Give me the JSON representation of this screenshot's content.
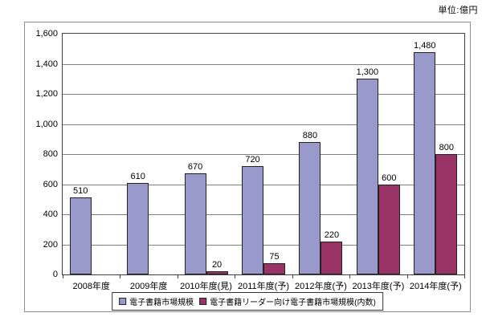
{
  "chart_data": {
    "type": "bar",
    "title": "",
    "unit_annotation": "単位:億円",
    "categories": [
      "2008年度",
      "2009年度",
      "2010年度(見)",
      "2011年度(予)",
      "2012年度(予)",
      "2013年度(予)",
      "2014年度(予)"
    ],
    "series": [
      {
        "name": "電子書籍市場規模",
        "color": "#9999CC",
        "values": [
          510,
          610,
          670,
          720,
          880,
          1300,
          1480
        ]
      },
      {
        "name": "電子書籍リーダー向け電子書籍市場規模(内数)",
        "color": "#993366",
        "values": [
          null,
          null,
          20,
          75,
          220,
          600,
          800
        ]
      }
    ],
    "xlabel": "",
    "ylabel": "",
    "ylim": [
      0,
      1600
    ],
    "ytick_step": 200,
    "grid": true,
    "legend_position": "bottom",
    "data_labels": true
  },
  "colors": {
    "series1": "#9999CC",
    "series2": "#993366",
    "gridline": "#808080",
    "plot_border": "#404040",
    "frame_border": "#8c8c8c",
    "text": "#000000"
  }
}
